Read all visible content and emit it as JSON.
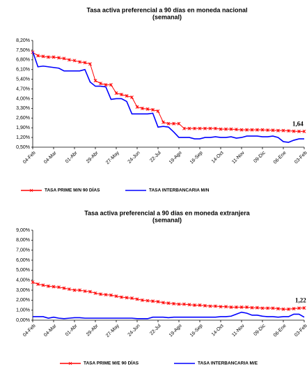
{
  "chart_data": [
    {
      "type": "line",
      "title": "Tasa activa preferencial a 90 días en moneda nacional",
      "subtitle": "(semanal)",
      "categories": [
        "04-Feb",
        null,
        null,
        null,
        "04-Mar",
        null,
        null,
        null,
        "01-Abr",
        null,
        null,
        null,
        "29-Abr",
        null,
        null,
        null,
        "27-May",
        null,
        null,
        null,
        "24-Jun",
        null,
        null,
        null,
        "22-Jul",
        null,
        null,
        null,
        "19-Ago",
        null,
        null,
        null,
        "16-Sep",
        null,
        null,
        null,
        "14-Oct",
        null,
        null,
        null,
        "11-Nov",
        null,
        null,
        null,
        "09-Dic",
        null,
        null,
        null,
        "06-Ene",
        null,
        null,
        null,
        "03-Feb"
      ],
      "series": [
        {
          "name": "TASA PRIME M/N 90 DÍAS",
          "color": "#ff0000",
          "marker": "star",
          "values": [
            7.35,
            7.1,
            7.05,
            7.0,
            7.0,
            6.95,
            6.9,
            6.8,
            6.75,
            6.65,
            6.6,
            6.5,
            5.3,
            5.1,
            5.0,
            5.0,
            4.4,
            4.3,
            4.2,
            4.1,
            3.4,
            3.3,
            3.25,
            3.2,
            3.1,
            2.3,
            2.2,
            2.2,
            2.2,
            1.85,
            1.85,
            1.85,
            1.85,
            1.85,
            1.85,
            1.85,
            1.8,
            1.8,
            1.8,
            1.78,
            1.75,
            1.75,
            1.75,
            1.75,
            1.75,
            1.73,
            1.72,
            1.7,
            1.7,
            1.68,
            1.65,
            1.64,
            1.64
          ]
        },
        {
          "name": "TASA INTERBANCARIA M/N",
          "color": "#0000ff",
          "marker": "none",
          "values": [
            7.4,
            6.3,
            6.35,
            6.3,
            6.25,
            6.2,
            6.0,
            6.0,
            6.0,
            6.0,
            6.1,
            5.2,
            4.9,
            4.9,
            4.85,
            3.95,
            4.0,
            4.0,
            3.8,
            2.9,
            2.9,
            2.9,
            2.9,
            2.95,
            1.95,
            2.0,
            1.95,
            1.6,
            1.2,
            1.2,
            1.2,
            1.1,
            1.1,
            1.2,
            1.2,
            1.25,
            1.2,
            1.2,
            1.25,
            1.15,
            1.2,
            1.3,
            1.3,
            1.3,
            1.25,
            1.25,
            1.3,
            1.2,
            0.9,
            0.85,
            1.0,
            1.1,
            1.1
          ]
        }
      ],
      "ylim": [
        0.5,
        8.2
      ],
      "yticks": [
        {
          "value": 0.5,
          "label": "0,50%"
        },
        {
          "value": 1.2,
          "label": "1,20%"
        },
        {
          "value": 1.9,
          "label": "1,90%"
        },
        {
          "value": 2.6,
          "label": "2,60%"
        },
        {
          "value": 3.3,
          "label": "3,30%"
        },
        {
          "value": 4.0,
          "label": "4,00%"
        },
        {
          "value": 4.7,
          "label": "4,70%"
        },
        {
          "value": 5.4,
          "label": "5,40%"
        },
        {
          "value": 6.1,
          "label": "6,10%"
        },
        {
          "value": 6.8,
          "label": "6,80%"
        },
        {
          "value": 7.5,
          "label": "7,50%"
        },
        {
          "value": 8.2,
          "label": "8,20%"
        }
      ],
      "annotations": [
        {
          "text": "1,64",
          "value": 1.64
        }
      ],
      "legend": "bottom"
    },
    {
      "type": "line",
      "title": "Tasa activa preferencial a 90 días en moneda extranjera",
      "subtitle": "(semanal)",
      "categories": [
        "04-Feb",
        null,
        null,
        null,
        "04-Mar",
        null,
        null,
        null,
        "01-Abr",
        null,
        null,
        null,
        "29-Abr",
        null,
        null,
        null,
        "27-May",
        null,
        null,
        null,
        "24-Jun",
        null,
        null,
        null,
        "22-Jul",
        null,
        null,
        null,
        "19-Ago",
        null,
        null,
        null,
        "16-Sep",
        null,
        null,
        null,
        "14-Oct",
        null,
        null,
        null,
        "11-Nov",
        null,
        null,
        null,
        "09-Dic",
        null,
        null,
        null,
        "06-Ene",
        null,
        null,
        null,
        "03-Feb"
      ],
      "series": [
        {
          "name": "TASA PRIME M/E 90 DÍAS",
          "color": "#ff0000",
          "marker": "star",
          "values": [
            3.8,
            3.6,
            3.5,
            3.4,
            3.35,
            3.3,
            3.2,
            3.1,
            3.0,
            3.0,
            2.9,
            2.85,
            2.7,
            2.6,
            2.55,
            2.5,
            2.4,
            2.3,
            2.25,
            2.2,
            2.1,
            2.0,
            1.95,
            1.9,
            1.85,
            1.75,
            1.7,
            1.65,
            1.6,
            1.6,
            1.55,
            1.5,
            1.5,
            1.45,
            1.4,
            1.4,
            1.35,
            1.35,
            1.3,
            1.3,
            1.3,
            1.3,
            1.25,
            1.25,
            1.2,
            1.2,
            1.2,
            1.15,
            1.1,
            1.1,
            1.15,
            1.2,
            1.22
          ]
        },
        {
          "name": "TASA INTERBANCARIA M/E",
          "color": "#0000ff",
          "marker": "none",
          "values": [
            0.35,
            0.35,
            0.35,
            0.2,
            0.3,
            0.2,
            0.15,
            0.2,
            0.25,
            0.25,
            0.2,
            0.2,
            0.2,
            0.2,
            0.2,
            0.2,
            0.2,
            0.2,
            0.2,
            0.2,
            0.15,
            0.15,
            0.15,
            0.3,
            0.3,
            0.3,
            0.25,
            0.3,
            0.3,
            0.3,
            0.3,
            0.3,
            0.3,
            0.3,
            0.3,
            0.3,
            0.35,
            0.35,
            0.4,
            0.6,
            0.8,
            0.7,
            0.5,
            0.5,
            0.4,
            0.35,
            0.35,
            0.3,
            0.35,
            0.35,
            0.6,
            0.6,
            0.3
          ]
        }
      ],
      "ylim": [
        0,
        9
      ],
      "yticks": [
        {
          "value": 0,
          "label": "0,00%"
        },
        {
          "value": 1,
          "label": "1,00%"
        },
        {
          "value": 2,
          "label": "2,00%"
        },
        {
          "value": 3,
          "label": "3,00%"
        },
        {
          "value": 4,
          "label": "4,00%"
        },
        {
          "value": 5,
          "label": "5,00%"
        },
        {
          "value": 6,
          "label": "6,00%"
        },
        {
          "value": 7,
          "label": "7,00%"
        },
        {
          "value": 8,
          "label": "8,00%"
        },
        {
          "value": 9,
          "label": "9,00%"
        }
      ],
      "annotations": [
        {
          "text": "1,22",
          "value": 1.22
        }
      ],
      "legend": "bottom"
    }
  ]
}
